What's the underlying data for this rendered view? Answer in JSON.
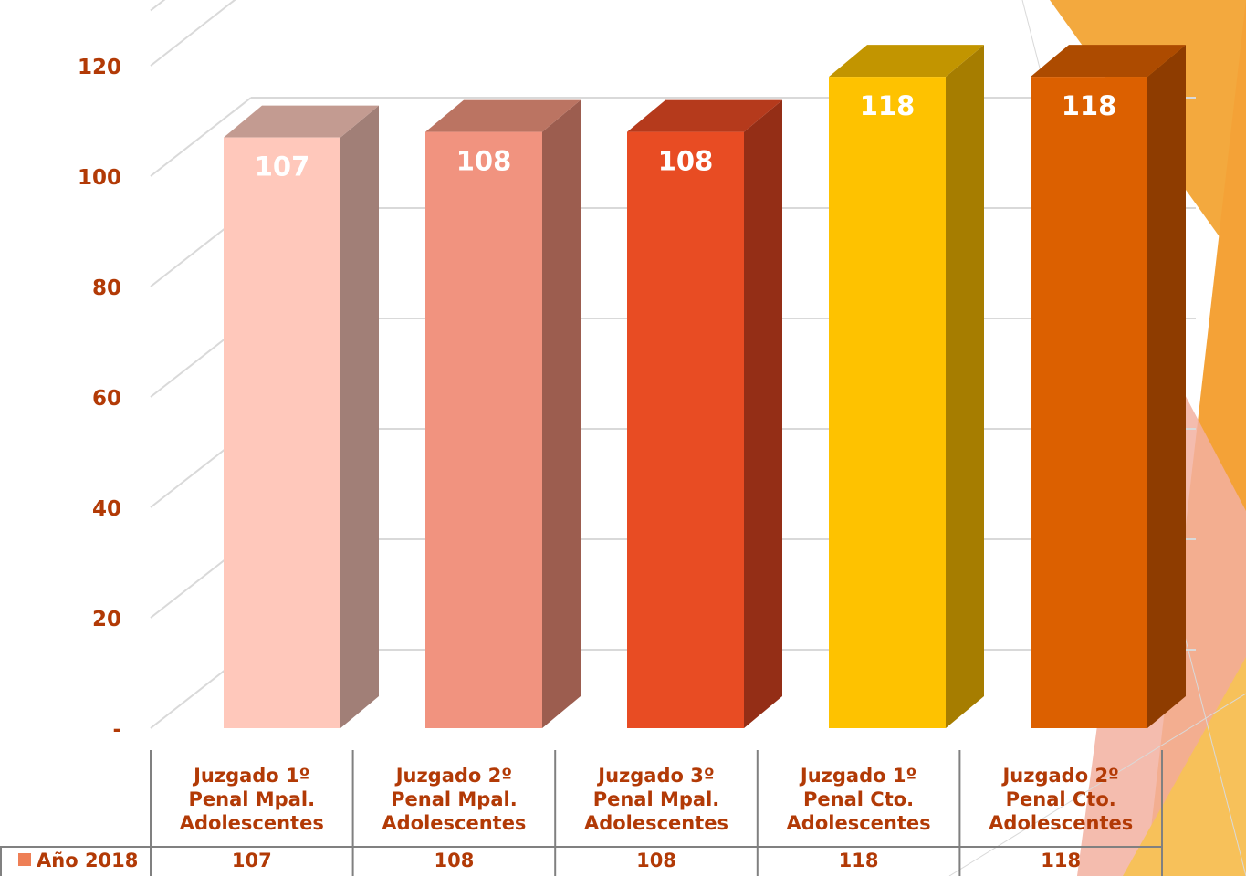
{
  "chart_data": {
    "type": "bar",
    "categories": [
      [
        "Juzgado 1º",
        "Penal Mpal.",
        "Adolescentes"
      ],
      [
        "Juzgado 2º",
        "Penal Mpal.",
        "Adolescentes"
      ],
      [
        "Juzgado 3º",
        "Penal Mpal.",
        "Adolescentes"
      ],
      [
        "Juzgado 1º",
        "Penal Cto.",
        "Adolescentes"
      ],
      [
        "Juzgado 2º",
        "Penal Cto.",
        "Adolescentes"
      ]
    ],
    "series": [
      {
        "name": "Año 2018",
        "values": [
          107,
          108,
          108,
          118,
          118
        ]
      }
    ],
    "y_ticks": [
      {
        "value": 0,
        "label": "-"
      },
      {
        "value": 20,
        "label": "20"
      },
      {
        "value": 40,
        "label": "40"
      },
      {
        "value": 60,
        "label": "60"
      },
      {
        "value": 80,
        "label": "80"
      },
      {
        "value": 100,
        "label": "100"
      },
      {
        "value": 120,
        "label": "120"
      }
    ],
    "ylim": [
      0,
      130
    ],
    "grid": true,
    "three_d": true,
    "data_table_below": true,
    "legend_key_color": "#ee7f56",
    "bar_colors": [
      {
        "front": "#ffc8bb",
        "side": "#a17f77",
        "top": "#c39b91"
      },
      {
        "front": "#f1937f",
        "side": "#9c5d4f",
        "top": "#bb7462"
      },
      {
        "front": "#e84c23",
        "side": "#942e16",
        "top": "#b53a1c"
      },
      {
        "front": "#fec200",
        "side": "#a67d00",
        "top": "#c29500"
      },
      {
        "front": "#dc6000",
        "side": "#8e3c00",
        "top": "#ad4b00"
      }
    ],
    "axis_label_color": "#b23a06"
  }
}
